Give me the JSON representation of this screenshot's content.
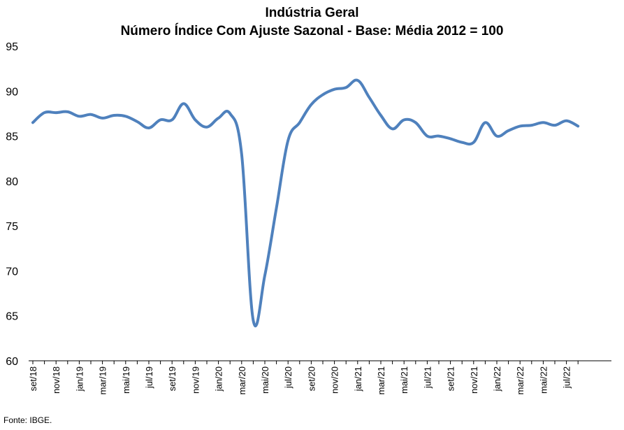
{
  "chart_data": {
    "type": "line",
    "title": "Indústria Geral",
    "subtitle": "Número Índice Com Ajuste Sazonal - Base: Média 2012 = 100",
    "xlabel": "",
    "ylabel": "",
    "ylim": [
      60,
      95
    ],
    "yticks": [
      60,
      65,
      70,
      75,
      80,
      85,
      90,
      95
    ],
    "grid": false,
    "legend": "none",
    "x_tick_labels": [
      "set/18",
      "nov/18",
      "jan/19",
      "mar/19",
      "mai/19",
      "jul/19",
      "set/19",
      "nov/19",
      "jan/20",
      "mar/20",
      "mai/20",
      "jul/20",
      "set/20",
      "nov/20",
      "jan/21",
      "mar/21",
      "mai/21",
      "jul/21",
      "set/21",
      "nov/21",
      "jan/22",
      "mar/22",
      "mai/22",
      "jul/22"
    ],
    "x": [
      "set/18",
      "out/18",
      "nov/18",
      "dez/18",
      "jan/19",
      "fev/19",
      "mar/19",
      "abr/19",
      "mai/19",
      "jun/19",
      "jul/19",
      "ago/19",
      "set/19",
      "out/19",
      "nov/19",
      "dez/19",
      "jan/20",
      "fev/20",
      "mar/20",
      "abr/20",
      "mai/20",
      "jun/20",
      "jul/20",
      "ago/20",
      "set/20",
      "out/20",
      "nov/20",
      "dez/20",
      "jan/21",
      "fev/21",
      "mar/21",
      "abr/21",
      "mai/21",
      "jun/21",
      "jul/21",
      "ago/21",
      "set/21",
      "out/21",
      "nov/21",
      "dez/21",
      "jan/22",
      "fev/22",
      "mar/22",
      "abr/22",
      "mai/22",
      "jun/22",
      "jul/22",
      "ago/22"
    ],
    "series": [
      {
        "color": "#4F81BD",
        "values": [
          86.5,
          87.6,
          87.6,
          87.7,
          87.2,
          87.4,
          87.0,
          87.3,
          87.2,
          86.6,
          85.9,
          86.8,
          86.8,
          88.6,
          86.8,
          86.0,
          87.0,
          87.5,
          83.0,
          64.5,
          69.5,
          77.0,
          84.5,
          86.5,
          88.5,
          89.6,
          90.2,
          90.4,
          91.2,
          89.3,
          87.3,
          85.8,
          86.8,
          86.5,
          85.0,
          85.0,
          84.7,
          84.3,
          84.3,
          86.5,
          85.0,
          85.6,
          86.1,
          86.2,
          86.5,
          86.2,
          86.7,
          86.1
        ]
      }
    ]
  },
  "source": "Fonte: IBGE."
}
